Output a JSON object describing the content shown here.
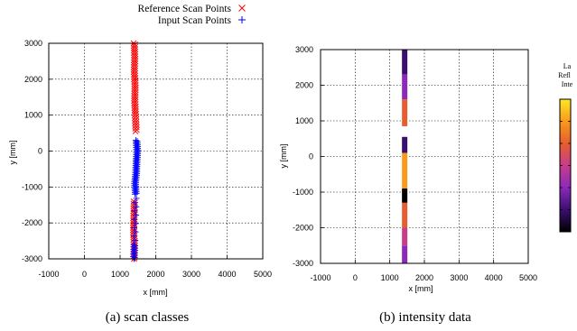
{
  "legend": {
    "reference_label": "Reference Scan Points",
    "input_label": "Input Scan Points"
  },
  "colors": {
    "reference": "#ff0000",
    "input": "#0000ff",
    "gradient": [
      "#000000",
      "#3b0f70",
      "#8c29bb",
      "#c83c8a",
      "#e85d2f",
      "#f99a1a",
      "#fde725"
    ]
  },
  "chart_data": [
    {
      "type": "scatter",
      "caption": "(a) scan classes",
      "xlabel": "x [mm]",
      "ylabel": "y [mm]",
      "xlim": [
        -1000,
        5000
      ],
      "ylim": [
        -3000,
        3000
      ],
      "xticks": [
        -1000,
        0,
        1000,
        2000,
        3000,
        4000,
        5000
      ],
      "yticks": [
        -3000,
        -2000,
        -1000,
        0,
        1000,
        2000,
        3000
      ],
      "grid": true,
      "series": [
        {
          "name": "Reference Scan Points",
          "marker": "x",
          "points": [
            [
              1400,
              3000
            ],
            [
              1410,
              2600
            ],
            [
              1400,
              2200
            ],
            [
              1420,
              1800
            ],
            [
              1410,
              1400
            ],
            [
              1430,
              1000
            ],
            [
              1450,
              550
            ],
            [
              1400,
              -1400
            ],
            [
              1390,
              -1800
            ],
            [
              1380,
              -2200
            ],
            [
              1400,
              -2600
            ],
            [
              1390,
              -3000
            ]
          ]
        },
        {
          "name": "Input Scan Points",
          "marker": "+",
          "points": [
            [
              1460,
              300
            ],
            [
              1480,
              0
            ],
            [
              1460,
              -300
            ],
            [
              1450,
              -600
            ],
            [
              1420,
              -900
            ],
            [
              1440,
              -1200
            ],
            [
              1400,
              -2600
            ],
            [
              1390,
              -3000
            ]
          ]
        }
      ]
    },
    {
      "type": "scatter",
      "caption": "(b) intensity data",
      "xlabel": "x [mm]",
      "ylabel": "y [mm]",
      "xlim": [
        -1000,
        5000
      ],
      "ylim": [
        -3000,
        3000
      ],
      "xticks": [
        -1000,
        0,
        1000,
        2000,
        3000,
        4000,
        5000
      ],
      "yticks": [
        -3000,
        -2000,
        -1000,
        0,
        1000,
        2000,
        3000
      ],
      "grid": true,
      "colorbar_label": [
        "La",
        "Refl",
        "Inte"
      ],
      "segments": [
        {
          "y_from": 3000,
          "y_to": 2300,
          "color": "#3b0f70"
        },
        {
          "y_from": 2300,
          "y_to": 1600,
          "color": "#8c29bb"
        },
        {
          "y_from": 1600,
          "y_to": 850,
          "color": "#e85d2f"
        },
        {
          "y_from": 550,
          "y_to": 100,
          "color": "#3b0f70"
        },
        {
          "y_from": 100,
          "y_to": -900,
          "color": "#f99a1a"
        },
        {
          "y_from": -900,
          "y_to": -1300,
          "color": "#000000"
        },
        {
          "y_from": -1300,
          "y_to": -2000,
          "color": "#e85d2f"
        },
        {
          "y_from": -2000,
          "y_to": -2500,
          "color": "#c83c8a"
        },
        {
          "y_from": -2500,
          "y_to": -3000,
          "color": "#8c29bb"
        }
      ],
      "x_center": 1430
    }
  ]
}
